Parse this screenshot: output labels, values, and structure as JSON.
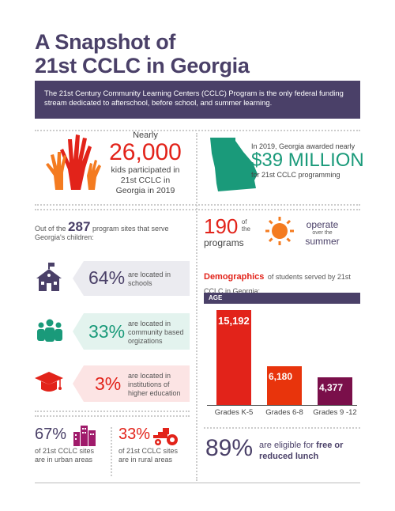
{
  "title": {
    "line1": "A Snapshot of",
    "line2": "21st CCLC in Georgia"
  },
  "banner": "The 21st Century Community Learning Centers (CCLC) Program is the only federal funding stream dedicated to afterschool, before school, and summer learning.",
  "participation": {
    "prefix": "Nearly",
    "number": "26,000",
    "text": "kids participated in 21st CCLC in Georgia in 2019"
  },
  "funding": {
    "line1": "In 2019, Georgia awarded nearly",
    "amount": "$39 MILLION",
    "line2": "for 21st CCLC programming"
  },
  "sites": {
    "intro_pre": "Out of the",
    "count": "287",
    "intro_post": "program sites that serve Georgia's children:"
  },
  "summer": {
    "number": "190",
    "of": "of",
    "the": "the",
    "programs": "programs",
    "operate": "operate",
    "over_the": "over the",
    "summer": "summer"
  },
  "locations": [
    {
      "pct": "64%",
      "text": "are located in schools",
      "icon": "school-icon"
    },
    {
      "pct": "33%",
      "text": "are located in community based orgizations",
      "icon": "community-icon"
    },
    {
      "pct": "3%",
      "text": "are located in institutions of higher education",
      "icon": "graduation-cap-icon"
    }
  ],
  "demographics": {
    "title": "Demographics",
    "title_rest": "of students served by 21st CCLC in Georgia:",
    "header": "AGE"
  },
  "chart_data": {
    "type": "bar",
    "categories": [
      "Grades K-5",
      "Grades 6-8",
      "Grades 9 -12"
    ],
    "values": [
      15192,
      6180,
      4377
    ],
    "value_labels": [
      "15,192",
      "6,180",
      "4,377"
    ],
    "colors": [
      "#e2231a",
      "#e8340c",
      "#7a0f4a"
    ]
  },
  "urban": {
    "pct": "67%",
    "text": "of 21st CCLC sites are in urban areas"
  },
  "rural": {
    "pct": "33%",
    "text": "of 21st CCLC sites are in rural areas"
  },
  "lunch": {
    "pct": "89%",
    "text_pre": "are eligible for",
    "text_bold": "free or reduced lunch"
  }
}
